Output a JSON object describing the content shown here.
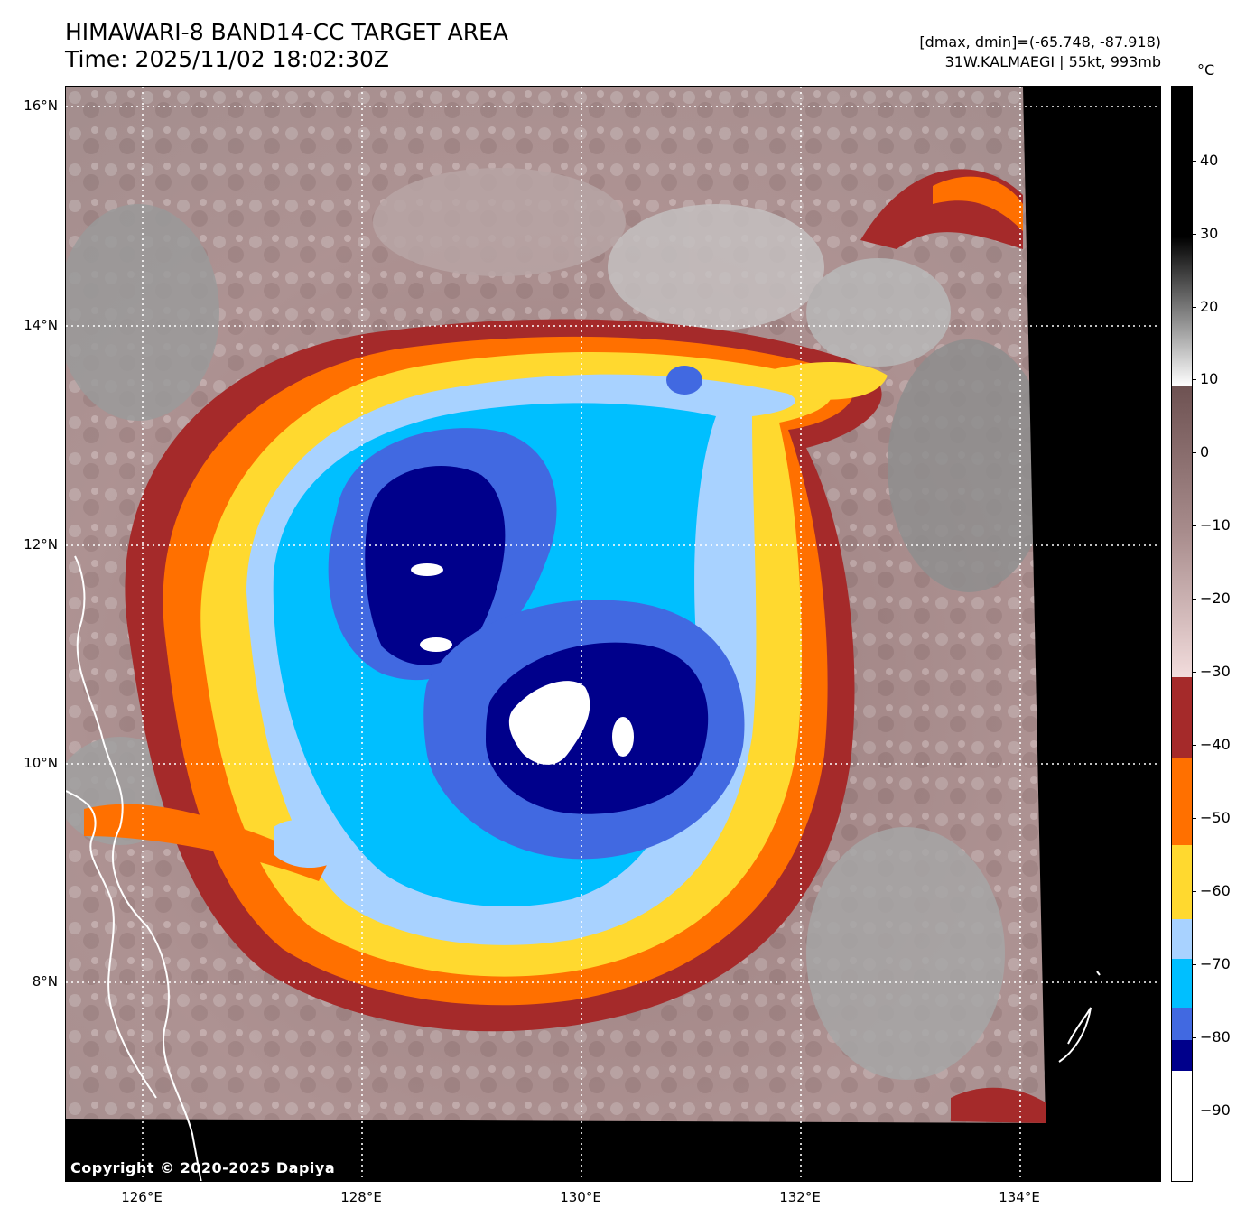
{
  "header": {
    "title_line1": "HIMAWARI-8 BAND14-CC TARGET AREA",
    "title_line2": "Time: 2025/11/02 18:02:30Z",
    "meta_line1": "[dmax, dmin]=(-65.748, -87.918)",
    "meta_line2": "31W.KALMAEGI | 55kt, 993mb"
  },
  "map": {
    "lat_labels": [
      "16°N",
      "14°N",
      "12°N",
      "10°N",
      "8°N"
    ],
    "lon_labels": [
      "126°E",
      "128°E",
      "130°E",
      "132°E",
      "134°E"
    ],
    "copyright": "Copyright © 2020-2025 Dapiya"
  },
  "colorbar": {
    "unit": "°C",
    "tick_labels": [
      "40",
      "30",
      "20",
      "10",
      "0",
      "−10",
      "−20",
      "−30",
      "−40",
      "−50",
      "−60",
      "−70",
      "−80",
      "−90"
    ],
    "colors": {
      "warm_top": "#000000",
      "warm_gray_mid": "#808080",
      "warm_gray_light": "#ffffff",
      "mauve_dark": "#6e5252",
      "pink_light": "#f0d8d8",
      "red": "#a52a2a",
      "orange": "#ff7000",
      "yellow": "#ffd92f",
      "light_blue": "#a8d2ff",
      "sky_blue": "#00bfff",
      "royal_blue": "#4169e1",
      "navy": "#00008b",
      "white": "#ffffff"
    }
  }
}
